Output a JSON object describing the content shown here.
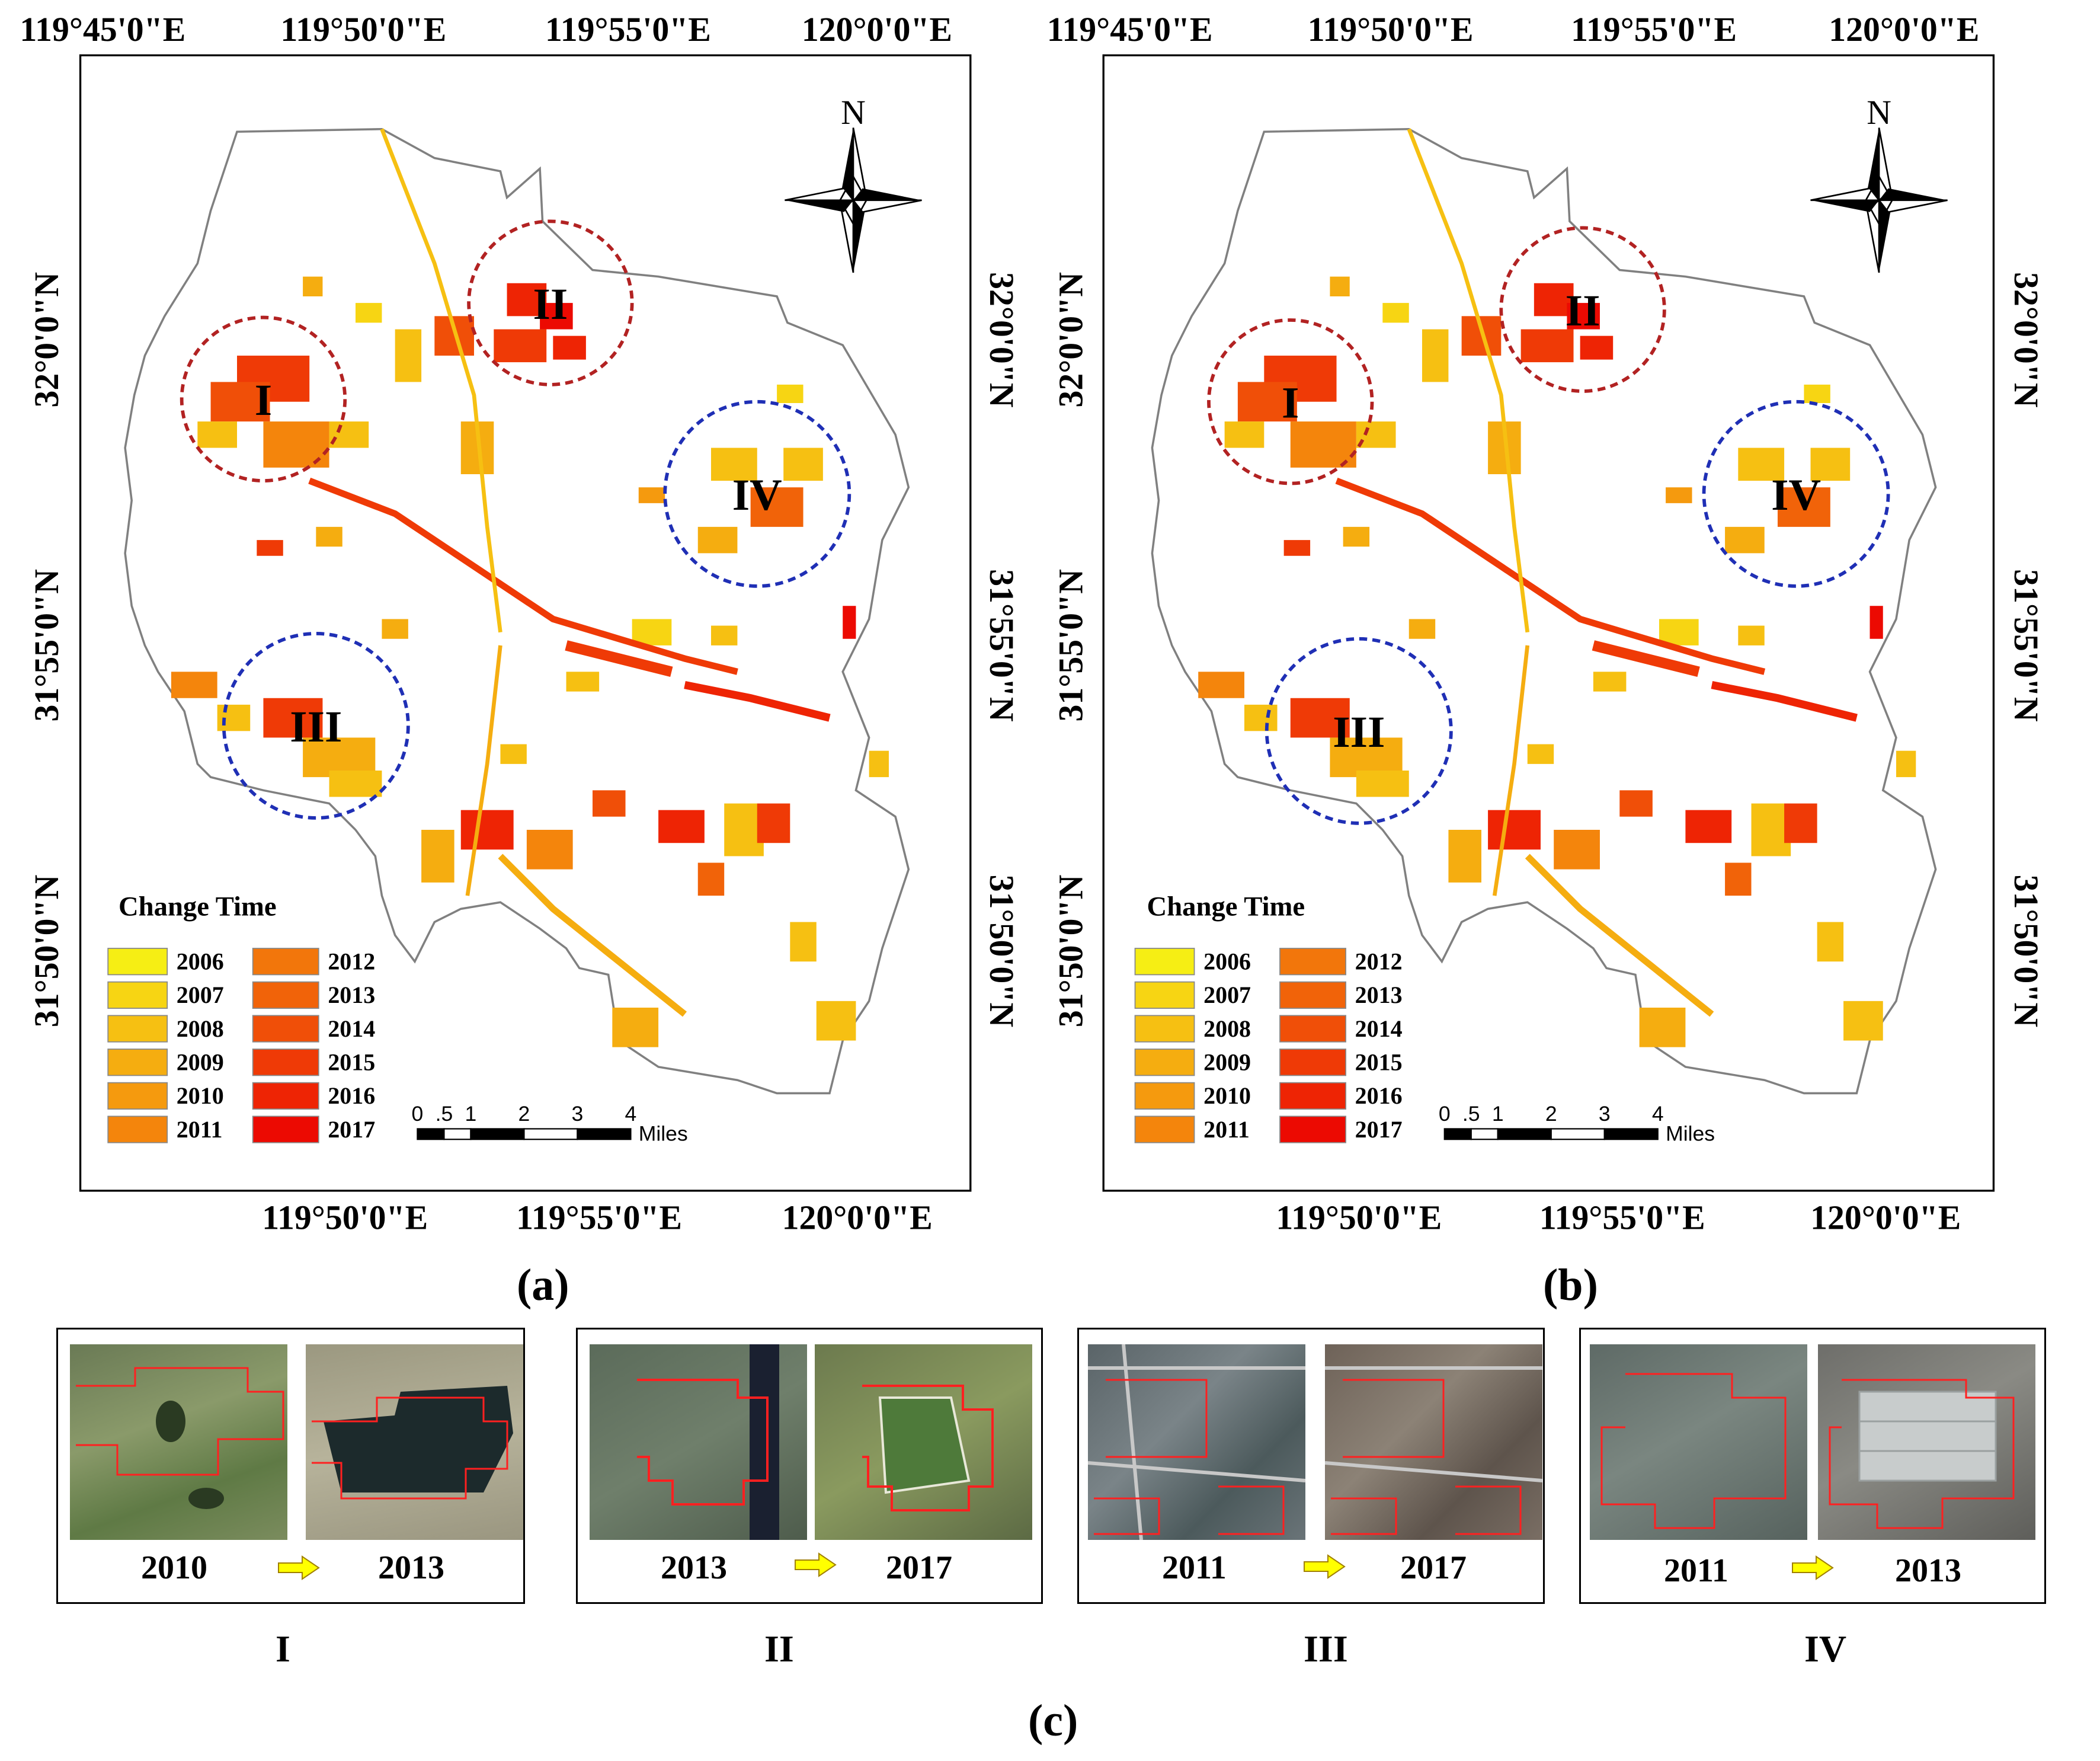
{
  "maps": [
    {
      "id": "a",
      "panel_label": "(a)",
      "top_lon_labels": [
        "119°45'0\"E",
        "119°50'0\"E",
        "119°55'0\"E",
        "120°0'0\"E"
      ],
      "bottom_lon_labels": [
        "119°50'0\"E",
        "119°55'0\"E",
        "120°0'0\"E"
      ],
      "left_lat_labels": [
        "32°0'0\"N",
        "31°55'0\"N",
        "31°50'0\"N"
      ],
      "right_lat_labels": [
        "32°0'0\"N",
        "31°55'0\"N",
        "31°50'0\"N"
      ],
      "north_label": "N",
      "regions": [
        {
          "label": "I",
          "color": "#b22222"
        },
        {
          "label": "II",
          "color": "#b22222"
        },
        {
          "label": "III",
          "color": "#1f2fb5"
        },
        {
          "label": "IV",
          "color": "#1f2fb5"
        }
      ]
    },
    {
      "id": "b",
      "panel_label": "(b)",
      "top_lon_labels": [
        "119°45'0\"E",
        "119°50'0\"E",
        "119°55'0\"E",
        "120°0'0\"E"
      ],
      "bottom_lon_labels": [
        "119°50'0\"E",
        "119°55'0\"E",
        "120°0'0\"E"
      ],
      "left_lat_labels": [
        "32°0'0\"N",
        "31°55'0\"N",
        "31°50'0\"N"
      ],
      "right_lat_labels": [
        "32°0'0\"N",
        "31°55'0\"N",
        "31°50'0\"N"
      ],
      "north_label": "N",
      "regions": [
        {
          "label": "I",
          "color": "#b22222"
        },
        {
          "label": "II",
          "color": "#b22222"
        },
        {
          "label": "III",
          "color": "#1f2fb5"
        },
        {
          "label": "IV",
          "color": "#1f2fb5"
        }
      ]
    }
  ],
  "legend": {
    "title": "Change Time",
    "items": [
      {
        "year": "2006",
        "color": "#f6ee14"
      },
      {
        "year": "2007",
        "color": "#f7d513"
      },
      {
        "year": "2008",
        "color": "#f6c012"
      },
      {
        "year": "2009",
        "color": "#f5ad10"
      },
      {
        "year": "2010",
        "color": "#f59a0e"
      },
      {
        "year": "2011",
        "color": "#f4850c"
      },
      {
        "year": "2012",
        "color": "#f2760b"
      },
      {
        "year": "2013",
        "color": "#f16309"
      },
      {
        "year": "2014",
        "color": "#f04f08"
      },
      {
        "year": "2015",
        "color": "#ef3a06"
      },
      {
        "year": "2016",
        "color": "#ee2404"
      },
      {
        "year": "2017",
        "color": "#ec0a02"
      }
    ]
  },
  "scale_bar": {
    "ticks": [
      "0",
      ".5",
      "1",
      "2",
      "3",
      "4"
    ],
    "unit": "Miles"
  },
  "insets": {
    "panel_label": "(c)",
    "items": [
      {
        "roman": "I",
        "before_year": "2010",
        "after_year": "2013"
      },
      {
        "roman": "II",
        "before_year": "2013",
        "after_year": "2017"
      },
      {
        "roman": "III",
        "before_year": "2011",
        "after_year": "2017"
      },
      {
        "roman": "IV",
        "before_year": "2011",
        "after_year": "2013"
      }
    ]
  },
  "colors": {
    "arrow": "#ffff00",
    "boundary": "#808080",
    "polygon_outline": "#ff2020"
  }
}
